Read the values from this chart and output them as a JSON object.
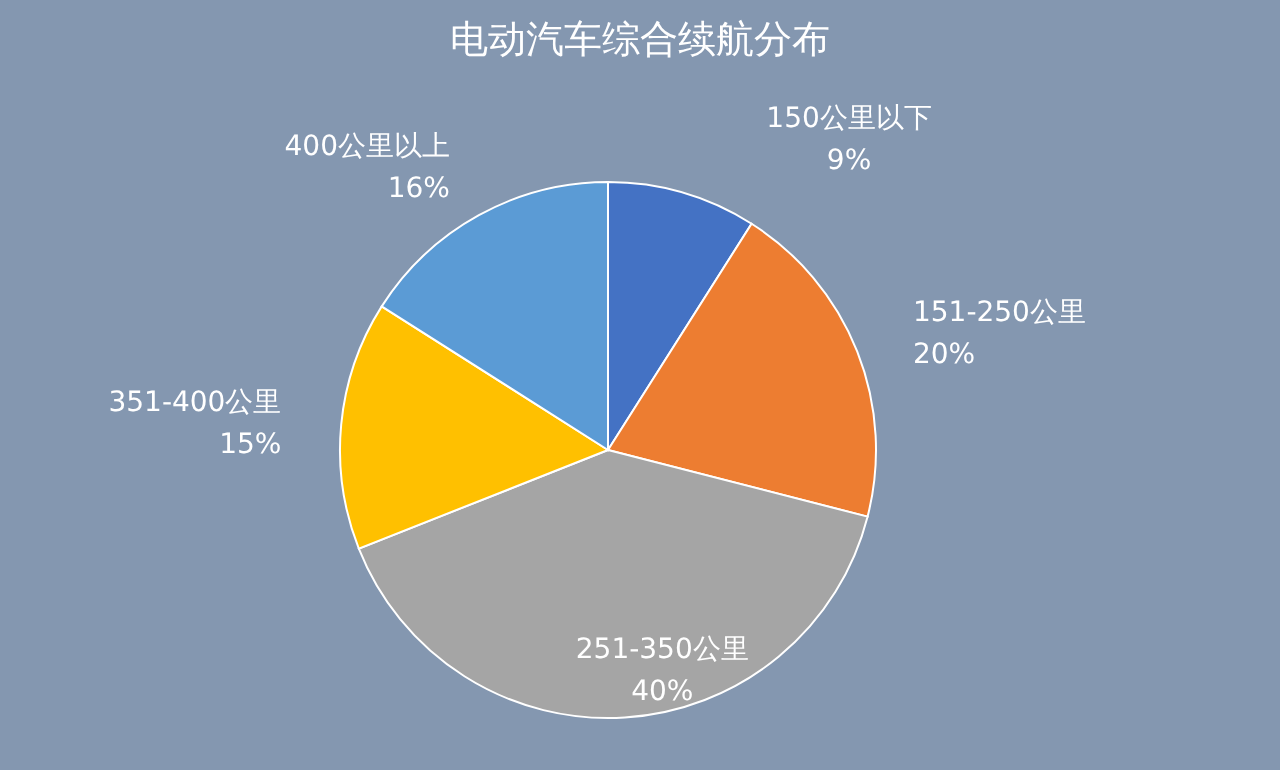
{
  "chart_data": {
    "type": "pie",
    "title": "电动汽车综合续航分布",
    "categories": [
      "150公里以下",
      "151-250公里",
      "251-350公里",
      "351-400公里",
      "400公里以上"
    ],
    "values": [
      9,
      20,
      40,
      15,
      16
    ],
    "colors": [
      "#4472c4",
      "#ed7d31",
      "#a5a5a5",
      "#ffc000",
      "#5b9bd5"
    ],
    "value_labels": [
      "9%",
      "20%",
      "40%",
      "15%",
      "16%"
    ]
  }
}
